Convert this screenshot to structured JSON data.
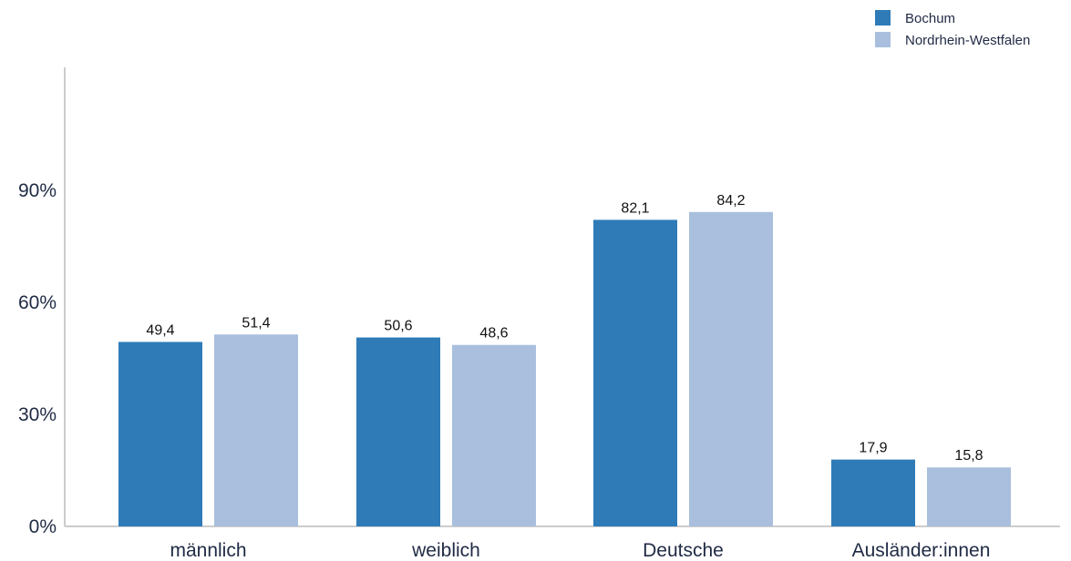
{
  "chart_data": {
    "type": "bar",
    "categories": [
      "männlich",
      "weiblich",
      "Deutsche",
      "Ausländer:innen"
    ],
    "series": [
      {
        "name": "Bochum",
        "color": "#2e7bb8",
        "values": [
          49.4,
          50.6,
          82.1,
          17.9
        ],
        "labels": [
          "49,4",
          "50,6",
          "82,1",
          "17,9"
        ]
      },
      {
        "name": "Nordrhein-Westfalen",
        "color": "#a9bfdd",
        "values": [
          51.4,
          48.6,
          84.2,
          15.8
        ],
        "labels": [
          "51,4",
          "48,6",
          "84,2",
          "15,8"
        ]
      }
    ],
    "y_ticks": [
      {
        "value": 0,
        "label": "0%"
      },
      {
        "value": 30,
        "label": "30%"
      },
      {
        "value": 60,
        "label": "60%"
      },
      {
        "value": 90,
        "label": "90%"
      }
    ],
    "ylim": [
      0,
      120
    ],
    "grid": false,
    "legend_position": "top-right",
    "axis_color": "#cccccc"
  }
}
